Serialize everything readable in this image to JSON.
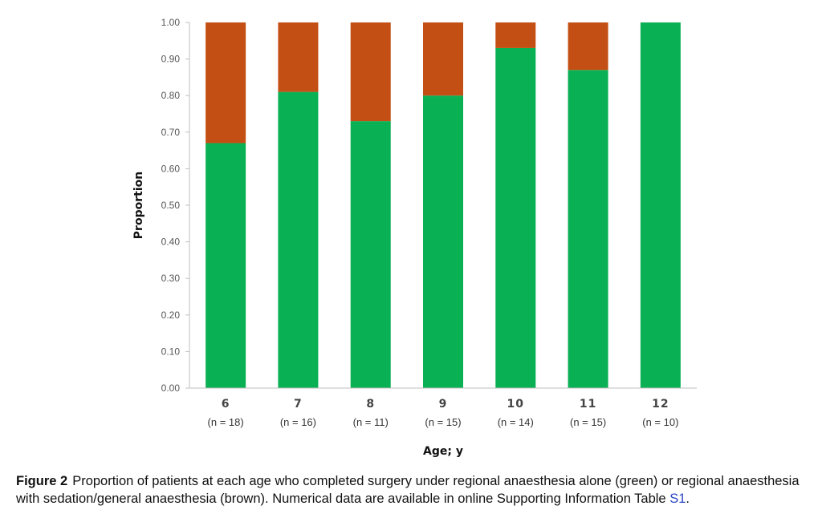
{
  "chart_data": {
    "type": "bar",
    "stacked": true,
    "categories": [
      "6",
      "7",
      "8",
      "9",
      "10",
      "11",
      "12"
    ],
    "sample_sizes": [
      "(n = 18)",
      "(n = 16)",
      "(n = 11)",
      "(n = 15)",
      "(n = 14)",
      "(n = 15)",
      "(n = 10)"
    ],
    "series": [
      {
        "values": [
          0.67,
          0.81,
          0.73,
          0.8,
          0.93,
          0.87,
          1.0
        ],
        "color": "#09b054"
      },
      {
        "values": [
          0.33,
          0.19,
          0.27,
          0.2,
          0.07,
          0.13,
          0.0
        ],
        "color": "#c44f14"
      }
    ],
    "xlabel": "Age; y",
    "ylabel": "Proportion",
    "ylim": [
      0,
      1
    ],
    "yticks": [
      "0.00",
      "0.10",
      "0.20",
      "0.30",
      "0.40",
      "0.50",
      "0.60",
      "0.70",
      "0.80",
      "0.90",
      "1.00"
    ],
    "grid": false
  },
  "caption": {
    "label": "Figure  2",
    "text": "Proportion of patients at each age who completed surgery under regional anaesthesia alone (green) or regional anaesthesia with sedation/general anaesthesia (brown). Numerical data are available in online Supporting Information Table ",
    "link": "S1",
    "end": "."
  }
}
